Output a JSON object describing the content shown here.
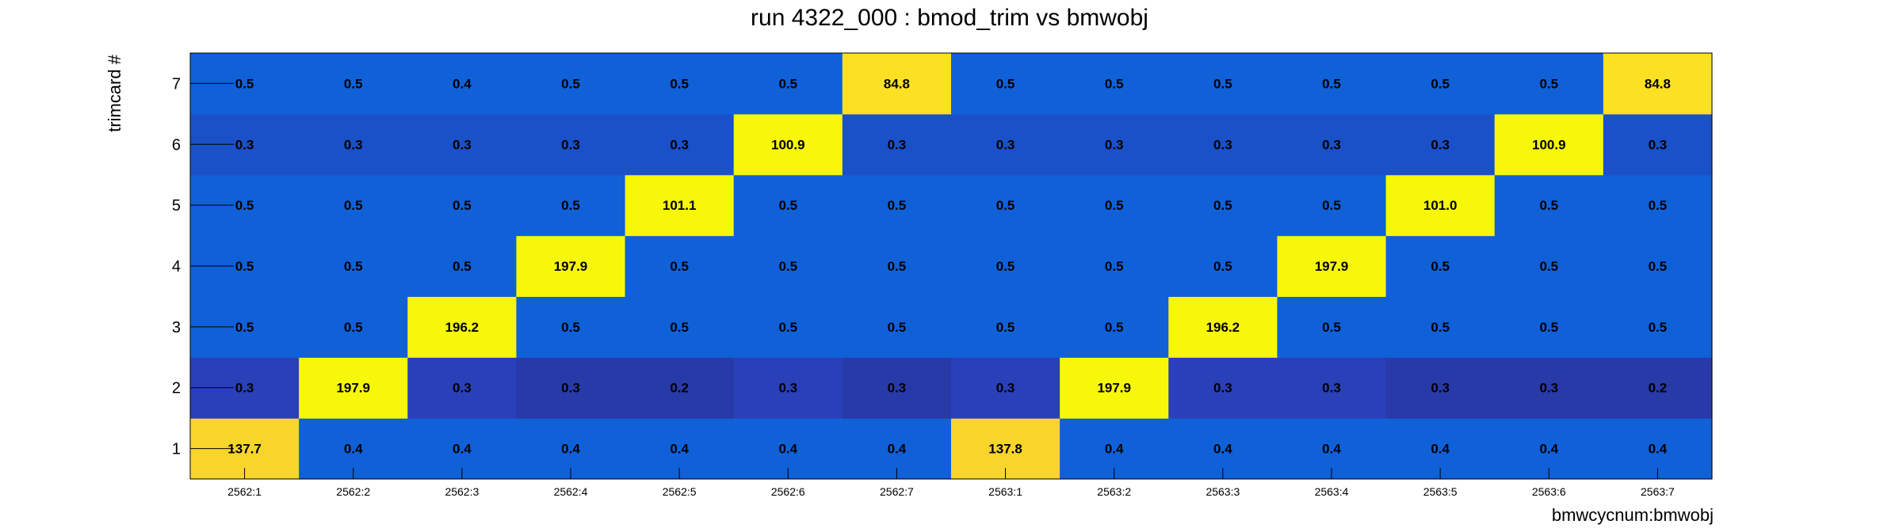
{
  "chart_data": {
    "type": "heatmap",
    "title": "run 4322_000 : bmod_trim vs bmwobj",
    "xlabel": "bmwcycnum:bmwobj",
    "ylabel": "trimcard #",
    "x_categories": [
      "2562:1",
      "2562:2",
      "2562:3",
      "2562:4",
      "2562:5",
      "2562:6",
      "2562:7",
      "2563:1",
      "2563:2",
      "2563:3",
      "2563:4",
      "2563:5",
      "2563:6",
      "2563:7"
    ],
    "y_categories": [
      "1",
      "2",
      "3",
      "4",
      "5",
      "6",
      "7"
    ],
    "values": [
      [
        "137.7",
        "0.4",
        "0.4",
        "0.4",
        "0.4",
        "0.4",
        "0.4",
        "137.8",
        "0.4",
        "0.4",
        "0.4",
        "0.4",
        "0.4",
        "0.4"
      ],
      [
        "0.3",
        "197.9",
        "0.3",
        "0.3",
        "0.2",
        "0.3",
        "0.3",
        "0.3",
        "197.9",
        "0.3",
        "0.3",
        "0.3",
        "0.3",
        "0.2"
      ],
      [
        "0.5",
        "0.5",
        "196.2",
        "0.5",
        "0.5",
        "0.5",
        "0.5",
        "0.5",
        "0.5",
        "196.2",
        "0.5",
        "0.5",
        "0.5",
        "0.5"
      ],
      [
        "0.5",
        "0.5",
        "0.5",
        "197.9",
        "0.5",
        "0.5",
        "0.5",
        "0.5",
        "0.5",
        "0.5",
        "197.9",
        "0.5",
        "0.5",
        "0.5"
      ],
      [
        "0.5",
        "0.5",
        "0.5",
        "0.5",
        "101.1",
        "0.5",
        "0.5",
        "0.5",
        "0.5",
        "0.5",
        "0.5",
        "101.0",
        "0.5",
        "0.5"
      ],
      [
        "0.3",
        "0.3",
        "0.3",
        "0.3",
        "0.3",
        "100.9",
        "0.3",
        "0.3",
        "0.3",
        "0.3",
        "0.3",
        "0.3",
        "100.9",
        "0.3"
      ],
      [
        "0.5",
        "0.5",
        "0.4",
        "0.5",
        "0.5",
        "0.5",
        "84.8",
        "0.5",
        "0.5",
        "0.5",
        "0.5",
        "0.5",
        "0.5",
        "84.8"
      ]
    ],
    "row_colors": [
      "#1060d8",
      "#2a40b8",
      "#1060d8",
      "#1060d8",
      "#1060d8",
      "#1a50c8",
      "#1060d8"
    ],
    "cell_color_overrides": {
      "1": {
        "3": "#283aa8",
        "4": "#283aa8",
        "6": "#283aa8",
        "11": "#283aa8",
        "12": "#283aa8",
        "13": "#283aa8"
      }
    },
    "high_value_colors": {
      "high": "#f7f709",
      "mid": "#fce023",
      "peak_low": "#f7d52a"
    },
    "grid": false,
    "legend": "none"
  }
}
